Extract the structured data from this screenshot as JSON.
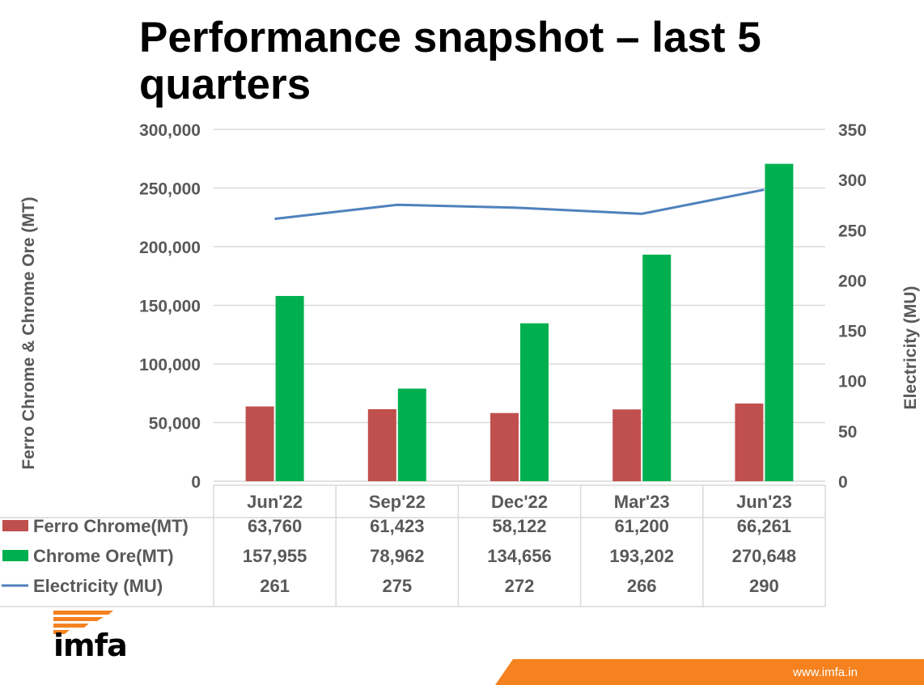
{
  "slide": {
    "title": "Performance snapshot – last 5 quarters",
    "footer_url": "www.imfa.in",
    "logo_text": "imfa",
    "brand_color": "#f5821f"
  },
  "chart_data": {
    "type": "bar",
    "title": "Performance snapshot – last 5 quarters",
    "categories": [
      "Jun'22",
      "Sep'22",
      "Dec'22",
      "Mar'23",
      "Jun'23"
    ],
    "series": [
      {
        "name": "Ferro Chrome(MT)",
        "type": "bar",
        "axis": "left",
        "color": "#c0504d",
        "values": [
          63760,
          61423,
          58122,
          61200,
          66261
        ],
        "labels": [
          "63,760",
          "61,423",
          "58,122",
          "61,200",
          "66,261"
        ]
      },
      {
        "name": "Chrome Ore(MT)",
        "type": "bar",
        "axis": "left",
        "color": "#00b050",
        "values": [
          157955,
          78962,
          134656,
          193202,
          270648
        ],
        "labels": [
          "157,955",
          "78,962",
          "134,656",
          "193,202",
          "270,648"
        ]
      },
      {
        "name": "Electricity (MU)",
        "type": "line",
        "axis": "right",
        "color": "#4f81bd",
        "values": [
          261,
          275,
          272,
          266,
          290
        ],
        "labels": [
          "261",
          "275",
          "272",
          "266",
          "290"
        ]
      }
    ],
    "ylabel": "Ferro Chrome & Chrome Ore (MT)",
    "y2label": "Electricity (MU)",
    "ylim": [
      0,
      300000
    ],
    "y2lim": [
      0,
      350
    ],
    "yticks": [
      "0",
      "50,000",
      "100,000",
      "150,000",
      "200,000",
      "250,000",
      "300,000"
    ],
    "ytick_values": [
      0,
      50000,
      100000,
      150000,
      200000,
      250000,
      300000
    ],
    "y2ticks": [
      "0",
      "50",
      "100",
      "150",
      "200",
      "250",
      "300",
      "350"
    ],
    "y2tick_values": [
      0,
      50,
      100,
      150,
      200,
      250,
      300,
      350
    ],
    "grid": true,
    "legend": "data-table"
  }
}
